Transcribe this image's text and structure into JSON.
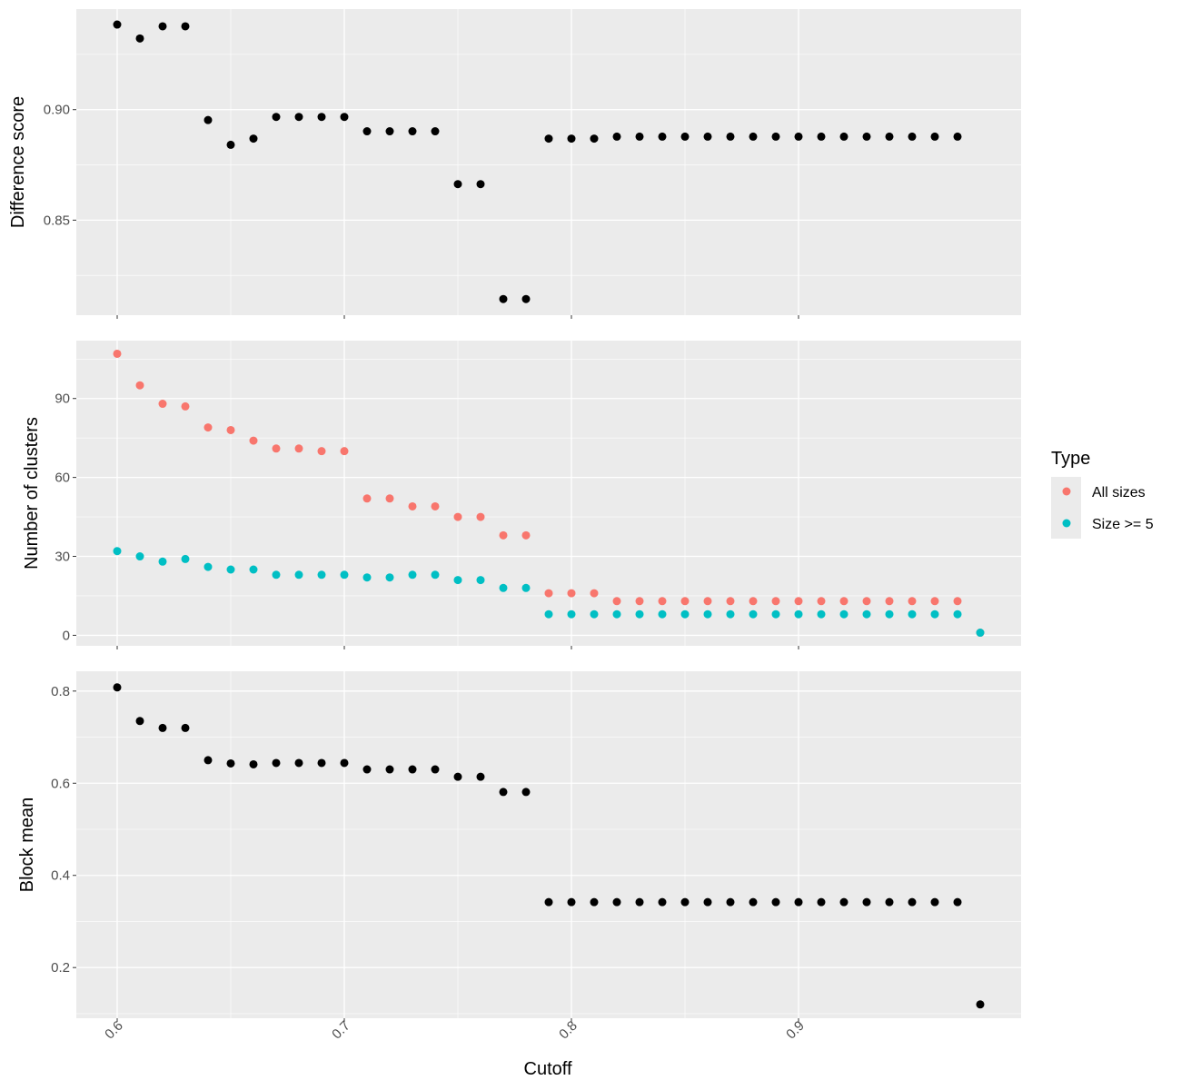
{
  "chart_data": {
    "type": "scatter",
    "x_label": "Cutoff",
    "x_range": [
      0.582,
      0.998
    ],
    "x_ticks": [
      0.6,
      0.7,
      0.8,
      0.9
    ],
    "x_tick_labels": [
      "0.6",
      "0.7",
      "0.8",
      "0.9"
    ],
    "grid": true,
    "legend": {
      "title": "Type",
      "placement": "right",
      "items": [
        {
          "label": "All sizes",
          "color": "#F8766D"
        },
        {
          "label": "Size >= 5",
          "color": "#00BFC4"
        }
      ]
    },
    "panels": [
      {
        "id": "difference",
        "ylabel": "Difference score",
        "ylim": [
          0.807,
          0.9455
        ],
        "y_ticks": [
          0.85,
          0.9
        ],
        "y_tick_labels": [
          "0.85",
          "0.90"
        ],
        "series": [
          {
            "color": "#000000",
            "points": [
              [
                0.6,
                0.9385
              ],
              [
                0.61,
                0.9322
              ],
              [
                0.62,
                0.9377
              ],
              [
                0.63,
                0.9377
              ],
              [
                0.64,
                0.8953
              ],
              [
                0.65,
                0.8841
              ],
              [
                0.66,
                0.8869
              ],
              [
                0.67,
                0.8967
              ],
              [
                0.68,
                0.8967
              ],
              [
                0.69,
                0.8967
              ],
              [
                0.7,
                0.8967
              ],
              [
                0.71,
                0.8902
              ],
              [
                0.72,
                0.8902
              ],
              [
                0.73,
                0.8902
              ],
              [
                0.74,
                0.8902
              ],
              [
                0.75,
                0.8663
              ],
              [
                0.76,
                0.8663
              ],
              [
                0.77,
                0.8143
              ],
              [
                0.78,
                0.8143
              ],
              [
                0.79,
                0.8869
              ],
              [
                0.8,
                0.8869
              ],
              [
                0.81,
                0.8869
              ],
              [
                0.82,
                0.8878
              ],
              [
                0.83,
                0.8878
              ],
              [
                0.84,
                0.8878
              ],
              [
                0.85,
                0.8878
              ],
              [
                0.86,
                0.8878
              ],
              [
                0.87,
                0.8878
              ],
              [
                0.88,
                0.8878
              ],
              [
                0.89,
                0.8878
              ],
              [
                0.9,
                0.8878
              ],
              [
                0.91,
                0.8878
              ],
              [
                0.92,
                0.8878
              ],
              [
                0.93,
                0.8878
              ],
              [
                0.94,
                0.8878
              ],
              [
                0.95,
                0.8878
              ],
              [
                0.96,
                0.8878
              ],
              [
                0.97,
                0.8878
              ]
            ]
          }
        ]
      },
      {
        "id": "clusters",
        "ylabel": "Number of clusters",
        "ylim": [
          -4,
          112
        ],
        "y_ticks": [
          0,
          30,
          60,
          90
        ],
        "y_tick_labels": [
          "0",
          "30",
          "60",
          "90"
        ],
        "series": [
          {
            "name": "All sizes",
            "color": "#F8766D",
            "points": [
              [
                0.6,
                107
              ],
              [
                0.61,
                95
              ],
              [
                0.62,
                88
              ],
              [
                0.63,
                87
              ],
              [
                0.64,
                79
              ],
              [
                0.65,
                78
              ],
              [
                0.66,
                74
              ],
              [
                0.67,
                71
              ],
              [
                0.68,
                71
              ],
              [
                0.69,
                70
              ],
              [
                0.7,
                70
              ],
              [
                0.71,
                52
              ],
              [
                0.72,
                52
              ],
              [
                0.73,
                49
              ],
              [
                0.74,
                49
              ],
              [
                0.75,
                45
              ],
              [
                0.76,
                45
              ],
              [
                0.77,
                38
              ],
              [
                0.78,
                38
              ],
              [
                0.79,
                16
              ],
              [
                0.8,
                16
              ],
              [
                0.81,
                16
              ],
              [
                0.82,
                13
              ],
              [
                0.83,
                13
              ],
              [
                0.84,
                13
              ],
              [
                0.85,
                13
              ],
              [
                0.86,
                13
              ],
              [
                0.87,
                13
              ],
              [
                0.88,
                13
              ],
              [
                0.89,
                13
              ],
              [
                0.9,
                13
              ],
              [
                0.91,
                13
              ],
              [
                0.92,
                13
              ],
              [
                0.93,
                13
              ],
              [
                0.94,
                13
              ],
              [
                0.95,
                13
              ],
              [
                0.96,
                13
              ],
              [
                0.97,
                13
              ],
              [
                0.98,
                1
              ]
            ]
          },
          {
            "name": "Size >= 5",
            "color": "#00BFC4",
            "points": [
              [
                0.6,
                32
              ],
              [
                0.61,
                30
              ],
              [
                0.62,
                28
              ],
              [
                0.63,
                29
              ],
              [
                0.64,
                26
              ],
              [
                0.65,
                25
              ],
              [
                0.66,
                25
              ],
              [
                0.67,
                23
              ],
              [
                0.68,
                23
              ],
              [
                0.69,
                23
              ],
              [
                0.7,
                23
              ],
              [
                0.71,
                22
              ],
              [
                0.72,
                22
              ],
              [
                0.73,
                23
              ],
              [
                0.74,
                23
              ],
              [
                0.75,
                21
              ],
              [
                0.76,
                21
              ],
              [
                0.77,
                18
              ],
              [
                0.78,
                18
              ],
              [
                0.79,
                8
              ],
              [
                0.8,
                8
              ],
              [
                0.81,
                8
              ],
              [
                0.82,
                8
              ],
              [
                0.83,
                8
              ],
              [
                0.84,
                8
              ],
              [
                0.85,
                8
              ],
              [
                0.86,
                8
              ],
              [
                0.87,
                8
              ],
              [
                0.88,
                8
              ],
              [
                0.89,
                8
              ],
              [
                0.9,
                8
              ],
              [
                0.91,
                8
              ],
              [
                0.92,
                8
              ],
              [
                0.93,
                8
              ],
              [
                0.94,
                8
              ],
              [
                0.95,
                8
              ],
              [
                0.96,
                8
              ],
              [
                0.97,
                8
              ],
              [
                0.98,
                1
              ]
            ]
          }
        ]
      },
      {
        "id": "blockmean",
        "ylabel": "Block mean",
        "ylim": [
          0.09,
          0.843
        ],
        "y_ticks": [
          0.2,
          0.4,
          0.6,
          0.8
        ],
        "y_tick_labels": [
          "0.2",
          "0.4",
          "0.6",
          "0.8"
        ],
        "series": [
          {
            "color": "#000000",
            "points": [
              [
                0.6,
                0.808
              ],
              [
                0.61,
                0.735
              ],
              [
                0.62,
                0.72
              ],
              [
                0.63,
                0.72
              ],
              [
                0.64,
                0.65
              ],
              [
                0.65,
                0.643
              ],
              [
                0.66,
                0.641
              ],
              [
                0.67,
                0.644
              ],
              [
                0.68,
                0.644
              ],
              [
                0.69,
                0.644
              ],
              [
                0.7,
                0.644
              ],
              [
                0.71,
                0.63
              ],
              [
                0.72,
                0.63
              ],
              [
                0.73,
                0.63
              ],
              [
                0.74,
                0.63
              ],
              [
                0.75,
                0.614
              ],
              [
                0.76,
                0.614
              ],
              [
                0.77,
                0.581
              ],
              [
                0.78,
                0.581
              ],
              [
                0.79,
                0.342
              ],
              [
                0.8,
                0.342
              ],
              [
                0.81,
                0.342
              ],
              [
                0.82,
                0.342
              ],
              [
                0.83,
                0.342
              ],
              [
                0.84,
                0.342
              ],
              [
                0.85,
                0.342
              ],
              [
                0.86,
                0.342
              ],
              [
                0.87,
                0.342
              ],
              [
                0.88,
                0.342
              ],
              [
                0.89,
                0.342
              ],
              [
                0.9,
                0.342
              ],
              [
                0.91,
                0.342
              ],
              [
                0.92,
                0.342
              ],
              [
                0.93,
                0.342
              ],
              [
                0.94,
                0.342
              ],
              [
                0.95,
                0.342
              ],
              [
                0.96,
                0.342
              ],
              [
                0.97,
                0.342
              ],
              [
                0.98,
                0.12
              ]
            ]
          }
        ]
      }
    ]
  }
}
